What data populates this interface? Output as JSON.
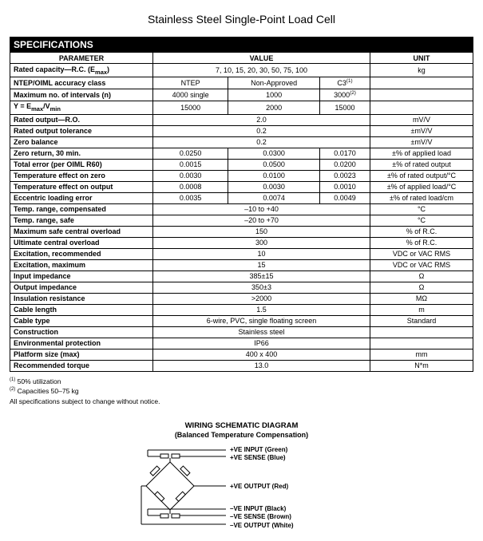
{
  "title": "Stainless Steel Single-Point Load Cell",
  "header": "SPECIFICATIONS",
  "columns": {
    "param": "PARAMETER",
    "value": "VALUE",
    "unit": "UNIT"
  },
  "rows": [
    {
      "param_html": "Rated capacity—R.C. (E<sub>max</sub>)",
      "vals": [
        "7, 10, 15, 20, 30, 50, 75, 100"
      ],
      "unit": "kg"
    },
    {
      "param_html": "NTEP/OIML accuracy class",
      "vals": [
        "NTEP",
        "Non-Approved",
        "C3<sup>(1)</sup>"
      ],
      "unit": ""
    },
    {
      "param_html": "Maximum no. of intervals (n)",
      "vals": [
        "4000 single",
        "1000",
        "3000<sup>(2)</sup>"
      ],
      "unit": ""
    },
    {
      "param_html": "Y = E<sub>max</sub>/V<sub>min</sub>",
      "vals": [
        "15000",
        "2000",
        "15000"
      ],
      "unit": ""
    },
    {
      "param_html": "Rated output—R.O.",
      "vals": [
        "2.0"
      ],
      "unit": "mV/V"
    },
    {
      "param_html": "Rated output tolerance",
      "vals": [
        "0.2"
      ],
      "unit": "±mV/V"
    },
    {
      "param_html": "Zero balance",
      "vals": [
        "0.2"
      ],
      "unit": "±mV/V"
    },
    {
      "param_html": "Zero return, 30 min.",
      "vals": [
        "0.0250",
        "0.0300",
        "0.0170"
      ],
      "unit": "±% of applied load"
    },
    {
      "param_html": "Total error (per OIML R60)",
      "vals": [
        "0.0015",
        "0.0500",
        "0.0200"
      ],
      "unit": "±% of rated output"
    },
    {
      "param_html": "Temperature effect on zero",
      "vals": [
        "0.0030",
        "0.0100",
        "0.0023"
      ],
      "unit": "±% of rated output/°C"
    },
    {
      "param_html": "Temperature effect on output",
      "vals": [
        "0.0008",
        "0.0030",
        "0.0010"
      ],
      "unit": "±% of applied load/°C"
    },
    {
      "param_html": "Eccentric loading error",
      "vals": [
        "0.0035",
        "0.0074",
        "0.0049"
      ],
      "unit": "±% of rated load/cm"
    },
    {
      "param_html": "Temp. range, compensated",
      "vals": [
        "–10 to +40"
      ],
      "unit": "°C"
    },
    {
      "param_html": "Temp. range, safe",
      "vals": [
        "–20 to +70"
      ],
      "unit": "°C"
    },
    {
      "param_html": "Maximum safe central overload",
      "vals": [
        "150"
      ],
      "unit": "% of R.C."
    },
    {
      "param_html": "Ultimate central overload",
      "vals": [
        "300"
      ],
      "unit": "% of R.C."
    },
    {
      "param_html": "Excitation, recommended",
      "vals": [
        "10"
      ],
      "unit": "VDC or VAC RMS"
    },
    {
      "param_html": "Excitation, maximum",
      "vals": [
        "15"
      ],
      "unit": "VDC or VAC RMS"
    },
    {
      "param_html": "Input impedance",
      "vals": [
        "385±15"
      ],
      "unit": "Ω"
    },
    {
      "param_html": "Output impedance",
      "vals": [
        "350±3"
      ],
      "unit": "Ω"
    },
    {
      "param_html": "Insulation resistance",
      "vals": [
        ">2000"
      ],
      "unit": "MΩ"
    },
    {
      "param_html": "Cable length",
      "vals": [
        "1.5"
      ],
      "unit": "m"
    },
    {
      "param_html": "Cable type",
      "vals": [
        "6-wire, PVC, single floating screen"
      ],
      "unit": "Standard"
    },
    {
      "param_html": "Construction",
      "vals": [
        "Stainless steel"
      ],
      "unit": ""
    },
    {
      "param_html": "Environmental protection",
      "vals": [
        "IP66"
      ],
      "unit": ""
    },
    {
      "param_html": "Platform size (max)",
      "vals": [
        "400 x 400"
      ],
      "unit": "mm"
    },
    {
      "param_html": "Recommended torque",
      "vals": [
        "13.0"
      ],
      "unit": "N*m"
    }
  ],
  "footnotes": [
    "<sup>(1)</sup> 50% utilization",
    "<sup>(2)</sup> Capacities 50–75 kg",
    "All specifications subject to change without notice."
  ],
  "diagram": {
    "title": "WIRING SCHEMATIC DIAGRAM",
    "subtitle": "(Balanced Temperature Compensation)",
    "labels": {
      "plus_input": "+VE INPUT  (Green)",
      "plus_sense": "+VE SENSE (Blue)",
      "plus_output": "+VE OUTPUT  (Red)",
      "minus_input": "–VE INPUT  (Black)",
      "minus_sense": "–VE SENSE  (Brown)",
      "minus_output": "–VE OUTPUT  (White)"
    }
  }
}
